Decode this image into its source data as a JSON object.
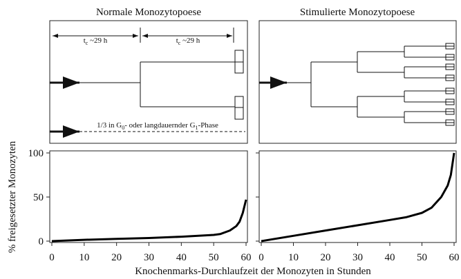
{
  "chart_data": [
    {
      "type": "line",
      "title": "Normale Monozytopoese",
      "ylabel": "% freigesetzter Monozyten",
      "xlabel": "Knochenmarks-Durchlaufzeit der Monozyten in Stunden",
      "annotations": [
        [
          "t",
          "c",
          " ~29 h"
        ],
        [
          "t",
          "c",
          " ~29 h"
        ],
        [
          "1/3 in G",
          "0",
          "- oder langdauernder G",
          "1",
          "-Phase"
        ]
      ],
      "x": [
        0,
        10,
        20,
        30,
        40,
        50,
        52,
        55,
        57,
        58,
        59,
        60
      ],
      "values": [
        0,
        1.5,
        2.5,
        3.5,
        5,
        7,
        8,
        12,
        17,
        22,
        32,
        47
      ],
      "color": "#000000",
      "xlim": [
        0,
        60
      ],
      "ylim": [
        0,
        100
      ],
      "xticks": [
        0,
        10,
        20,
        30,
        40,
        50,
        60
      ],
      "yticks": [
        0,
        50,
        100
      ]
    },
    {
      "type": "line",
      "title": "Stimulierte Monozytopoese",
      "x": [
        0,
        10,
        20,
        30,
        40,
        45,
        50,
        53,
        56,
        58,
        59,
        60
      ],
      "values": [
        0,
        6,
        12,
        18,
        24,
        27,
        32,
        38,
        50,
        63,
        75,
        100
      ],
      "color": "#000000",
      "xlim": [
        0,
        60
      ],
      "ylim": [
        0,
        100
      ],
      "xticks": [
        0,
        10,
        20,
        30,
        40,
        50,
        60
      ],
      "yticks": [
        0,
        50,
        100
      ]
    }
  ]
}
